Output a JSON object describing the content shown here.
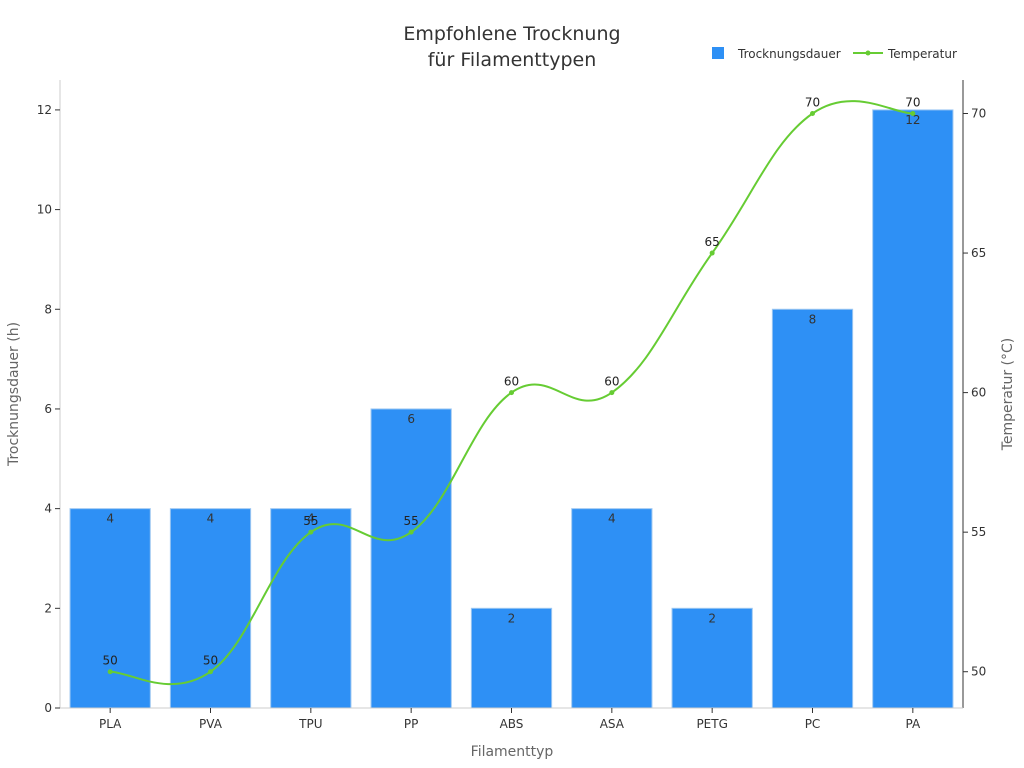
{
  "chart_data": {
    "type": "bar",
    "title_lines": [
      "Empfohlene Trocknung",
      "für Filamenttypen"
    ],
    "xlabel": "Filamenttyp",
    "ylabel": "Trocknungsdauer (h)",
    "y2label": "Temperatur (°C)",
    "categories": [
      "PLA",
      "PVA",
      "TPU",
      "PP",
      "ABS",
      "ASA",
      "PETG",
      "PC",
      "PA"
    ],
    "series": [
      {
        "name": "Trocknungsdauer",
        "type": "bar",
        "axis": "left",
        "color": "#2e90f5",
        "values": [
          4,
          4,
          4,
          6,
          2,
          4,
          2,
          8,
          12
        ]
      },
      {
        "name": "Temperatur",
        "type": "line",
        "axis": "right",
        "color": "#66cc33",
        "values": [
          50,
          50,
          55,
          55,
          60,
          60,
          65,
          70,
          70
        ]
      }
    ],
    "ylim": [
      0,
      12.6
    ],
    "yticks": [
      0,
      2,
      4,
      6,
      8,
      10,
      12
    ],
    "y2lim": [
      48.7,
      71.2
    ],
    "y2ticks": [
      50,
      55,
      60,
      65,
      70
    ],
    "legend_position": "top-right",
    "grid": false
  }
}
